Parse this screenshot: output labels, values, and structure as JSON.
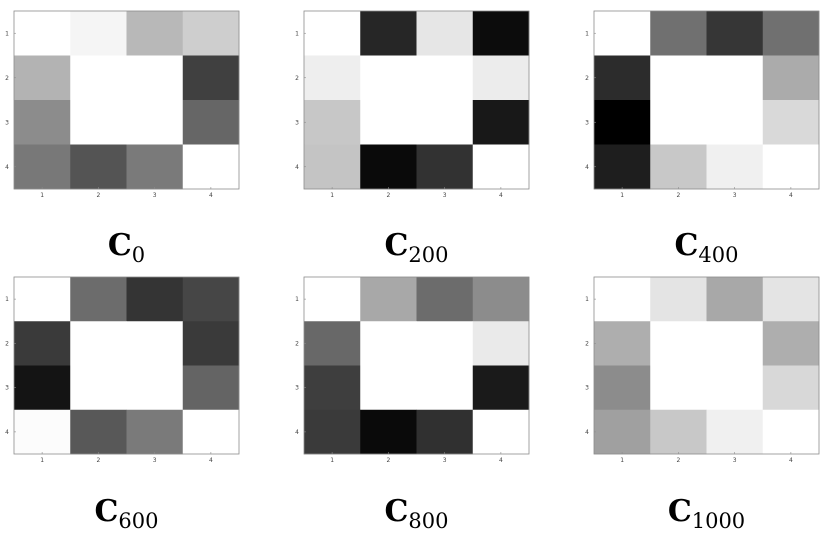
{
  "chart_data": [
    {
      "type": "heatmap",
      "title_main": "C",
      "title_sub": "0",
      "x_ticks": [
        "1",
        "2",
        "3",
        "4"
      ],
      "y_ticks": [
        "1",
        "2",
        "3",
        "4"
      ],
      "colormap": "grayscale (white = high, black = low)",
      "cell_gray": [
        [
          255,
          245,
          184,
          206
        ],
        [
          179,
          255,
          255,
          64
        ],
        [
          140,
          255,
          255,
          102
        ],
        [
          120,
          84,
          122,
          255
        ]
      ]
    },
    {
      "type": "heatmap",
      "title_main": "C",
      "title_sub": "200",
      "x_ticks": [
        "1",
        "2",
        "3",
        "4"
      ],
      "y_ticks": [
        "1",
        "2",
        "3",
        "4"
      ],
      "colormap": "grayscale (white = high, black = low)",
      "cell_gray": [
        [
          255,
          38,
          230,
          12
        ],
        [
          238,
          255,
          255,
          236
        ],
        [
          199,
          255,
          255,
          24
        ],
        [
          196,
          10,
          50,
          255
        ]
      ]
    },
    {
      "type": "heatmap",
      "title_main": "C",
      "title_sub": "400",
      "x_ticks": [
        "1",
        "2",
        "3",
        "4"
      ],
      "y_ticks": [
        "1",
        "2",
        "3",
        "4"
      ],
      "colormap": "grayscale (white = high, black = low)",
      "cell_gray": [
        [
          255,
          112,
          54,
          112
        ],
        [
          44,
          255,
          255,
          171
        ],
        [
          0,
          255,
          255,
          217
        ],
        [
          30,
          200,
          240,
          255
        ]
      ]
    },
    {
      "type": "heatmap",
      "title_main": "C",
      "title_sub": "600",
      "x_ticks": [
        "1",
        "2",
        "3",
        "4"
      ],
      "y_ticks": [
        "1",
        "2",
        "3",
        "4"
      ],
      "colormap": "grayscale (white = high, black = low)",
      "cell_gray": [
        [
          255,
          108,
          52,
          70
        ],
        [
          58,
          255,
          255,
          58
        ],
        [
          20,
          255,
          255,
          100
        ],
        [
          252,
          88,
          122,
          255
        ]
      ]
    },
    {
      "type": "heatmap",
      "title_main": "C",
      "title_sub": "800",
      "x_ticks": [
        "1",
        "2",
        "3",
        "4"
      ],
      "y_ticks": [
        "1",
        "2",
        "3",
        "4"
      ],
      "colormap": "grayscale (white = high, black = low)",
      "cell_gray": [
        [
          255,
          168,
          108,
          140
        ],
        [
          104,
          255,
          255,
          234
        ],
        [
          62,
          255,
          255,
          26
        ],
        [
          58,
          10,
          48,
          255
        ]
      ]
    },
    {
      "type": "heatmap",
      "title_main": "C",
      "title_sub": "1000",
      "x_ticks": [
        "1",
        "2",
        "3",
        "4"
      ],
      "y_ticks": [
        "1",
        "2",
        "3",
        "4"
      ],
      "colormap": "grayscale (white = high, black = low)",
      "cell_gray": [
        [
          255,
          228,
          168,
          228
        ],
        [
          174,
          255,
          255,
          174
        ],
        [
          140,
          255,
          255,
          216
        ],
        [
          160,
          200,
          240,
          255
        ]
      ]
    }
  ]
}
